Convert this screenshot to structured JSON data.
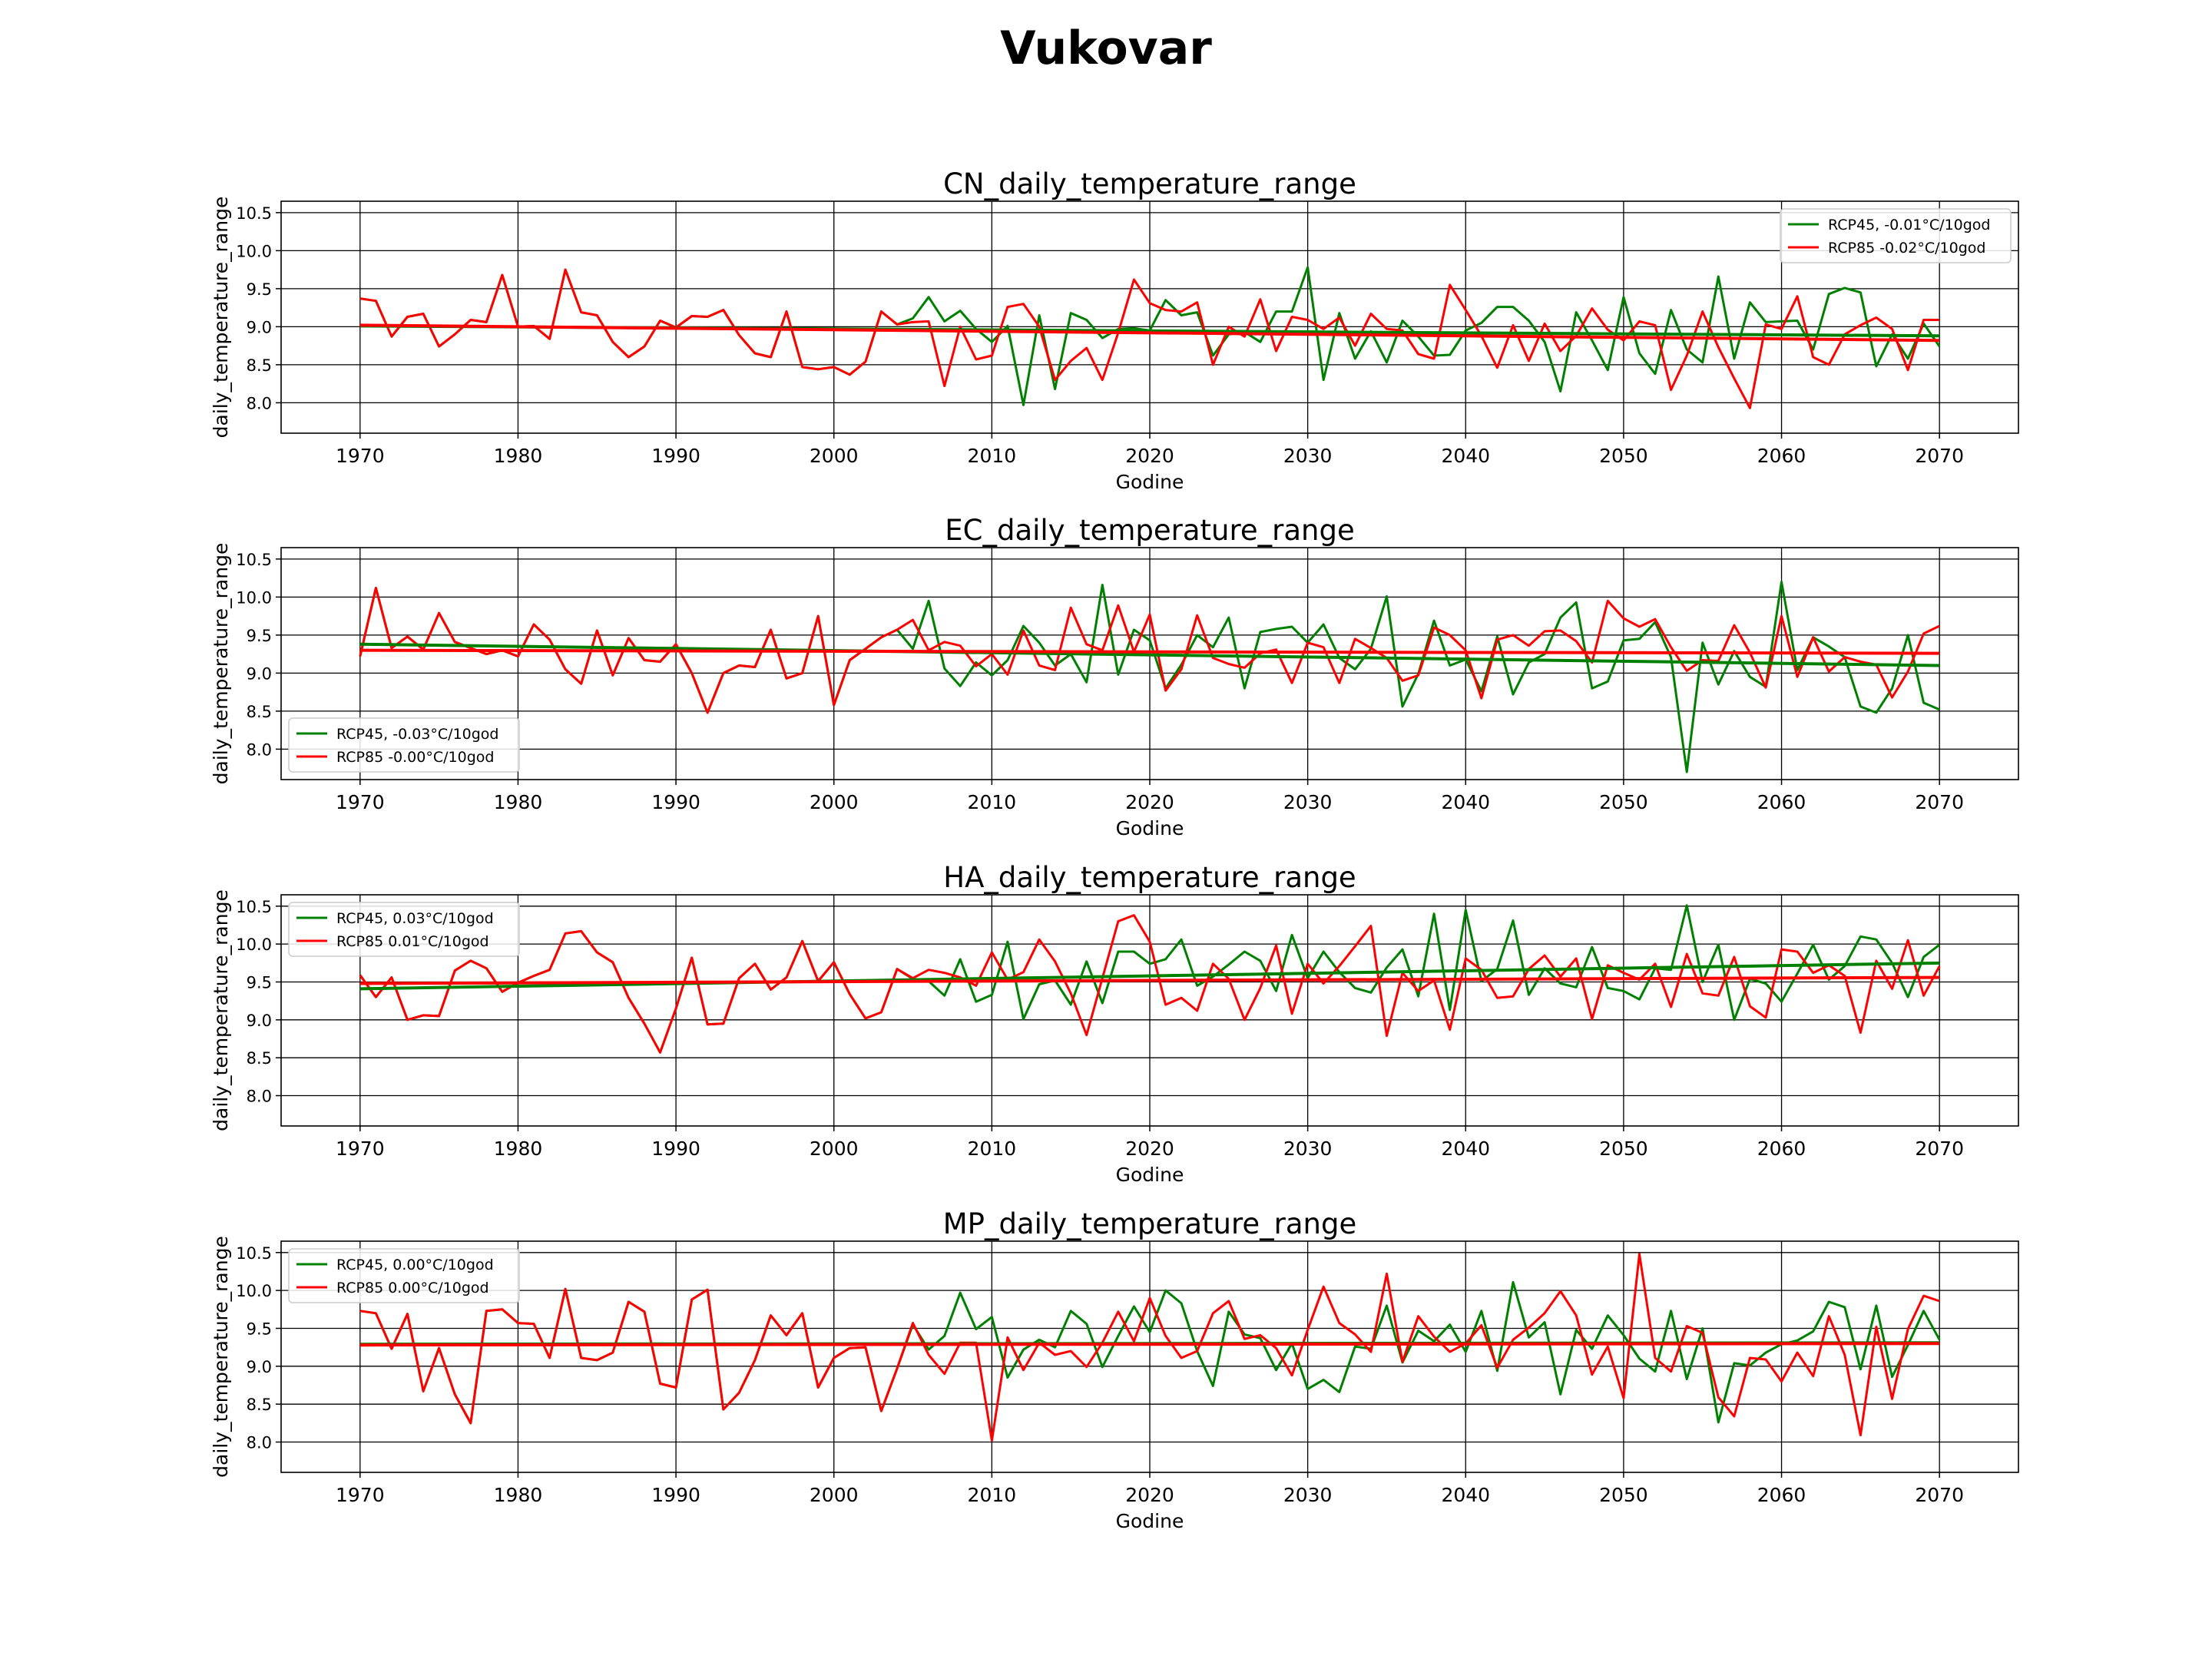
{
  "title": "Vukovar",
  "colors": {
    "rcp45": "#008000",
    "rcp85": "#ff0000",
    "grid": "#000000",
    "axes": "#000000"
  },
  "chart_data": [
    {
      "type": "line",
      "title": "CN_daily_temperature_range",
      "xlabel": "Godine",
      "ylabel": "daily_temperature_range",
      "xlim": [
        1965,
        2075
      ],
      "ylim": [
        7.6,
        10.65
      ],
      "xticks": [
        1970,
        1980,
        1990,
        2000,
        2010,
        2020,
        2030,
        2040,
        2050,
        2060,
        2070
      ],
      "yticks": [
        8.0,
        8.5,
        9.0,
        9.5,
        10.0,
        10.5
      ],
      "grid": true,
      "legend_position": "top-right",
      "series": [
        {
          "name": "RCP45, -0.01°C/10god",
          "color": "#008000",
          "x_start": 1970,
          "values": [
            9.37,
            9.34,
            8.87,
            9.13,
            9.17,
            8.74,
            8.9,
            9.09,
            9.06,
            9.68,
            9.0,
            9.01,
            8.84,
            9.75,
            9.19,
            9.15,
            8.8,
            8.6,
            8.74,
            9.08,
            8.99,
            9.14,
            9.13,
            9.22,
            8.89,
            8.65,
            8.6,
            9.2,
            8.47,
            8.44,
            8.47,
            8.37,
            8.54,
            9.2,
            9.03,
            9.11,
            9.39,
            9.07,
            9.21,
            8.97,
            8.8,
            9.01,
            7.97,
            9.15,
            8.18,
            9.18,
            9.09,
            8.85,
            8.97,
            8.98,
            8.95,
            9.35,
            9.15,
            9.19,
            8.62,
            8.9,
            8.93,
            8.8,
            9.2,
            9.2,
            9.78,
            8.3,
            9.18,
            8.58,
            8.94,
            8.53,
            9.08,
            8.87,
            8.62,
            8.63,
            8.95,
            9.05,
            9.26,
            9.26,
            9.08,
            8.8,
            8.15,
            9.19,
            8.82,
            8.43,
            9.39,
            8.65,
            8.38,
            9.22,
            8.7,
            8.53,
            9.66,
            8.58,
            9.32,
            9.06,
            9.07,
            9.08,
            8.7,
            9.43,
            9.51,
            9.45,
            8.48,
            8.9,
            8.58,
            9.04,
            8.74
          ],
          "trend": [
            9.01,
            8.88
          ]
        },
        {
          "name": "RCP85 -0.02°C/10god",
          "color": "#ff0000",
          "x_start": 1970,
          "values": [
            9.37,
            9.34,
            8.87,
            9.13,
            9.17,
            8.74,
            8.9,
            9.09,
            9.06,
            9.68,
            9.0,
            9.01,
            8.84,
            9.75,
            9.19,
            9.15,
            8.8,
            8.6,
            8.74,
            9.08,
            8.99,
            9.14,
            9.13,
            9.22,
            8.89,
            8.65,
            8.6,
            9.2,
            8.47,
            8.44,
            8.47,
            8.37,
            8.54,
            9.2,
            9.03,
            9.06,
            9.07,
            8.22,
            9.0,
            8.57,
            8.62,
            9.26,
            9.3,
            9.0,
            8.3,
            8.55,
            8.72,
            8.3,
            8.92,
            9.62,
            9.31,
            9.22,
            9.2,
            9.32,
            8.5,
            9.0,
            8.87,
            9.36,
            8.68,
            9.13,
            9.09,
            8.97,
            9.12,
            8.75,
            9.17,
            8.97,
            8.95,
            8.64,
            8.58,
            9.55,
            9.22,
            8.88,
            8.46,
            9.02,
            8.55,
            9.04,
            8.68,
            8.88,
            9.24,
            8.96,
            8.82,
            9.07,
            9.02,
            8.17,
            8.62,
            9.2,
            8.73,
            8.32,
            7.93,
            9.03,
            8.97,
            9.4,
            8.6,
            8.5,
            8.9,
            9.02,
            9.12,
            8.97,
            8.43,
            9.09,
            9.09
          ],
          "trend": [
            9.02,
            8.82
          ]
        }
      ]
    },
    {
      "type": "line",
      "title": "EC_daily_temperature_range",
      "xlabel": "Godine",
      "ylabel": "daily_temperature_range",
      "xlim": [
        1965,
        2075
      ],
      "ylim": [
        7.6,
        10.65
      ],
      "xticks": [
        1970,
        1980,
        1990,
        2000,
        2010,
        2020,
        2030,
        2040,
        2050,
        2060,
        2070
      ],
      "yticks": [
        8.0,
        8.5,
        9.0,
        9.5,
        10.0,
        10.5
      ],
      "grid": true,
      "legend_position": "bottom-left",
      "series": [
        {
          "name": "RCP45, -0.03°C/10god",
          "color": "#008000",
          "x_start": 1970,
          "values": [
            9.22,
            10.12,
            9.33,
            9.48,
            9.31,
            9.79,
            9.41,
            9.33,
            9.25,
            9.3,
            9.22,
            9.64,
            9.44,
            9.05,
            8.86,
            9.56,
            8.97,
            9.46,
            9.17,
            9.15,
            9.38,
            9.0,
            8.48,
            9.0,
            9.1,
            9.08,
            9.57,
            8.93,
            9.0,
            9.75,
            8.58,
            9.17,
            9.32,
            9.47,
            9.57,
            9.32,
            9.95,
            9.06,
            8.83,
            9.14,
            8.97,
            9.17,
            9.62,
            9.4,
            9.1,
            9.25,
            8.88,
            10.16,
            8.98,
            9.57,
            9.43,
            8.8,
            9.11,
            9.5,
            9.34,
            9.73,
            8.8,
            9.54,
            9.58,
            9.61,
            9.4,
            9.64,
            9.2,
            9.05,
            9.32,
            10.01,
            8.56,
            8.99,
            9.69,
            9.1,
            9.18,
            8.76,
            9.48,
            8.72,
            9.14,
            9.25,
            9.73,
            9.93,
            8.8,
            8.89,
            9.43,
            9.45,
            9.67,
            9.21,
            7.7,
            9.4,
            8.85,
            9.29,
            8.95,
            8.82,
            10.2,
            9.04,
            9.47,
            9.35,
            9.21,
            8.56,
            8.48,
            8.8,
            9.5,
            8.61,
            8.52
          ],
          "trend": [
            9.38,
            9.1
          ]
        },
        {
          "name": "RCP85 -0.00°C/10god",
          "color": "#ff0000",
          "x_start": 1970,
          "values": [
            9.22,
            10.12,
            9.33,
            9.48,
            9.31,
            9.79,
            9.41,
            9.33,
            9.25,
            9.3,
            9.22,
            9.64,
            9.44,
            9.05,
            8.86,
            9.56,
            8.97,
            9.46,
            9.17,
            9.15,
            9.38,
            9.0,
            8.48,
            9.0,
            9.1,
            9.08,
            9.57,
            8.93,
            9.0,
            9.75,
            8.58,
            9.17,
            9.32,
            9.47,
            9.57,
            9.7,
            9.3,
            9.41,
            9.36,
            9.09,
            9.25,
            8.98,
            9.56,
            9.1,
            9.04,
            9.86,
            9.38,
            9.3,
            9.89,
            9.28,
            9.77,
            8.77,
            9.05,
            9.76,
            9.2,
            9.12,
            9.07,
            9.26,
            9.31,
            8.87,
            9.4,
            9.34,
            8.87,
            9.45,
            9.33,
            9.2,
            8.9,
            8.97,
            9.6,
            9.5,
            9.3,
            8.67,
            9.44,
            9.5,
            9.36,
            9.55,
            9.56,
            9.42,
            9.14,
            9.95,
            9.72,
            9.61,
            9.71,
            9.34,
            9.03,
            9.17,
            9.16,
            9.63,
            9.27,
            8.81,
            9.75,
            8.95,
            9.47,
            9.02,
            9.21,
            9.15,
            9.11,
            8.68,
            9.02,
            9.52,
            9.62
          ],
          "trend": [
            9.3,
            9.26
          ]
        }
      ]
    },
    {
      "type": "line",
      "title": "HA_daily_temperature_range",
      "xlabel": "Godine",
      "ylabel": "daily_temperature_range",
      "xlim": [
        1965,
        2075
      ],
      "ylim": [
        7.6,
        10.65
      ],
      "xticks": [
        1970,
        1980,
        1990,
        2000,
        2010,
        2020,
        2030,
        2040,
        2050,
        2060,
        2070
      ],
      "yticks": [
        8.0,
        8.5,
        9.0,
        9.5,
        10.0,
        10.5
      ],
      "grid": true,
      "legend_position": "top-left",
      "series": [
        {
          "name": "RCP45, 0.03°C/10god",
          "color": "#008000",
          "x_start": 1970,
          "values": [
            9.59,
            9.3,
            9.56,
            9.0,
            9.06,
            9.05,
            9.65,
            9.78,
            9.68,
            9.37,
            9.49,
            9.58,
            9.66,
            10.14,
            10.17,
            9.89,
            9.76,
            9.29,
            8.95,
            8.57,
            9.15,
            9.82,
            8.94,
            8.95,
            9.55,
            9.74,
            9.4,
            9.56,
            10.04,
            9.51,
            9.76,
            9.34,
            9.02,
            9.1,
            9.67,
            9.54,
            9.51,
            9.32,
            9.8,
            9.24,
            9.33,
            10.03,
            9.01,
            9.47,
            9.52,
            9.2,
            9.77,
            9.22,
            9.9,
            9.9,
            9.74,
            9.8,
            10.06,
            9.45,
            9.57,
            9.73,
            9.9,
            9.78,
            9.38,
            10.12,
            9.55,
            9.9,
            9.63,
            9.42,
            9.36,
            9.69,
            9.93,
            9.31,
            10.4,
            9.13,
            10.45,
            9.51,
            9.67,
            10.31,
            9.33,
            9.68,
            9.48,
            9.43,
            9.96,
            9.42,
            9.38,
            9.27,
            9.68,
            9.66,
            10.51,
            9.5,
            9.99,
            9.0,
            9.54,
            9.48,
            9.24,
            9.61,
            9.99,
            9.53,
            9.71,
            10.1,
            10.06,
            9.75,
            9.3,
            9.83,
            9.99
          ],
          "trend": [
            9.41,
            9.75
          ]
        },
        {
          "name": "RCP85 0.01°C/10god",
          "color": "#ff0000",
          "x_start": 1970,
          "values": [
            9.59,
            9.3,
            9.56,
            9.0,
            9.06,
            9.05,
            9.65,
            9.78,
            9.68,
            9.37,
            9.49,
            9.58,
            9.66,
            10.14,
            10.17,
            9.89,
            9.76,
            9.29,
            8.95,
            8.57,
            9.15,
            9.82,
            8.94,
            8.95,
            9.55,
            9.74,
            9.4,
            9.56,
            10.04,
            9.51,
            9.76,
            9.34,
            9.02,
            9.1,
            9.67,
            9.55,
            9.66,
            9.62,
            9.56,
            9.45,
            9.89,
            9.53,
            9.63,
            10.06,
            9.77,
            9.35,
            8.8,
            9.55,
            10.3,
            10.38,
            10.03,
            9.2,
            9.29,
            9.12,
            9.74,
            9.54,
            9.0,
            9.42,
            9.98,
            9.08,
            9.74,
            9.48,
            9.71,
            9.97,
            10.24,
            8.79,
            9.62,
            9.38,
            9.52,
            8.87,
            9.81,
            9.66,
            9.29,
            9.31,
            9.67,
            9.85,
            9.57,
            9.81,
            9.01,
            9.72,
            9.62,
            9.53,
            9.74,
            9.17,
            9.87,
            9.35,
            9.32,
            9.83,
            9.18,
            9.03,
            9.93,
            9.9,
            9.62,
            9.72,
            9.58,
            8.83,
            9.78,
            9.41,
            10.05,
            9.32,
            9.71
          ],
          "trend": [
            9.48,
            9.56
          ]
        }
      ]
    },
    {
      "type": "line",
      "title": "MP_daily_temperature_range",
      "xlabel": "Godine",
      "ylabel": "daily_temperature_range",
      "xlim": [
        1965,
        2075
      ],
      "ylim": [
        7.6,
        10.65
      ],
      "xticks": [
        1970,
        1980,
        1990,
        2000,
        2010,
        2020,
        2030,
        2040,
        2050,
        2060,
        2070
      ],
      "yticks": [
        8.0,
        8.5,
        9.0,
        9.5,
        10.0,
        10.5
      ],
      "grid": true,
      "legend_position": "top-left",
      "series": [
        {
          "name": "RCP45, 0.00°C/10god",
          "color": "#008000",
          "x_start": 1970,
          "values": [
            9.73,
            9.7,
            9.23,
            9.69,
            8.67,
            9.24,
            8.63,
            8.25,
            9.73,
            9.75,
            9.57,
            9.56,
            9.11,
            10.02,
            9.11,
            9.08,
            9.18,
            9.85,
            9.72,
            8.77,
            8.72,
            9.88,
            10.01,
            8.43,
            8.65,
            9.08,
            9.67,
            9.41,
            9.7,
            8.72,
            9.11,
            9.24,
            9.25,
            8.41,
            8.97,
            9.55,
            9.22,
            9.4,
            9.97,
            9.49,
            9.65,
            8.85,
            9.22,
            9.35,
            9.25,
            9.73,
            9.56,
            8.99,
            9.4,
            9.79,
            9.45,
            10.0,
            9.83,
            9.2,
            8.74,
            9.72,
            9.42,
            9.37,
            8.95,
            9.3,
            8.7,
            8.82,
            8.66,
            9.26,
            9.23,
            9.8,
            9.05,
            9.47,
            9.33,
            9.55,
            9.19,
            9.73,
            8.94,
            10.11,
            9.38,
            9.58,
            8.63,
            9.48,
            9.23,
            9.67,
            9.41,
            9.1,
            8.93,
            9.73,
            8.83,
            9.5,
            8.26,
            9.04,
            9.01,
            9.18,
            9.29,
            9.34,
            9.46,
            9.85,
            9.78,
            8.96,
            9.8,
            8.86,
            9.28,
            9.73,
            9.35
          ],
          "trend": [
            9.29,
            9.31
          ]
        },
        {
          "name": "RCP85 0.00°C/10god",
          "color": "#ff0000",
          "x_start": 1970,
          "values": [
            9.73,
            9.7,
            9.23,
            9.69,
            8.67,
            9.24,
            8.63,
            8.25,
            9.73,
            9.75,
            9.57,
            9.56,
            9.11,
            10.02,
            9.11,
            9.08,
            9.18,
            9.85,
            9.72,
            8.77,
            8.72,
            9.88,
            10.01,
            8.43,
            8.65,
            9.08,
            9.67,
            9.41,
            9.7,
            8.72,
            9.11,
            9.24,
            9.25,
            8.41,
            8.97,
            9.57,
            9.15,
            8.9,
            9.31,
            9.31,
            8.02,
            9.38,
            8.95,
            9.31,
            9.15,
            9.2,
            8.99,
            9.31,
            9.72,
            9.33,
            9.9,
            9.4,
            9.11,
            9.2,
            9.7,
            9.86,
            9.36,
            9.41,
            9.24,
            8.88,
            9.48,
            10.05,
            9.57,
            9.42,
            9.19,
            10.22,
            9.06,
            9.66,
            9.39,
            9.19,
            9.3,
            9.54,
            8.98,
            9.35,
            9.51,
            9.7,
            9.99,
            9.67,
            8.89,
            9.26,
            8.58,
            10.48,
            9.11,
            8.93,
            9.53,
            9.44,
            8.59,
            8.34,
            9.11,
            9.09,
            8.8,
            9.18,
            8.87,
            9.66,
            9.15,
            8.09,
            9.52,
            8.57,
            9.49,
            9.93,
            9.86
          ],
          "trend": [
            9.28,
            9.3
          ]
        }
      ]
    }
  ]
}
